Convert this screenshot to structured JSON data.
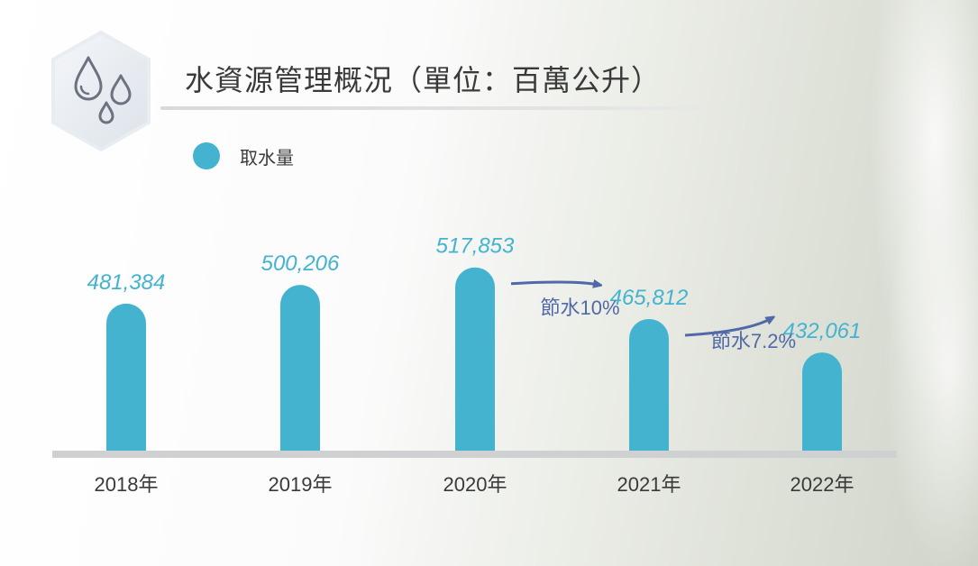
{
  "title": "水資源管理概況（單位：百萬公升）",
  "legend": {
    "label": "取水量",
    "color": "#43b3d0"
  },
  "colors": {
    "bar": "#43b3d0",
    "value_label": "#43b3d0",
    "arrow": "#5169a8",
    "axis": "#cfd0d2",
    "axis_label": "#3a3a3a"
  },
  "icon": "water-drops-icon",
  "chart_data": {
    "type": "bar",
    "title": "水資源管理概況（單位：百萬公升）",
    "xlabel": "",
    "ylabel": "",
    "categories": [
      "2018年",
      "2019年",
      "2020年",
      "2021年",
      "2022年"
    ],
    "series": [
      {
        "name": "取水量",
        "values": [
          481384,
          500206,
          517853,
          465812,
          432061
        ]
      }
    ],
    "value_labels": [
      "481,384",
      "500,206",
      "517,853",
      "465,812",
      "432,061"
    ],
    "annotations": [
      {
        "text": "節水10%",
        "from": "2020年",
        "to": "2021年"
      },
      {
        "text": "節水7.2%",
        "from": "2021年",
        "to": "2022年"
      }
    ],
    "legend_position": "top-left",
    "grid": false
  }
}
